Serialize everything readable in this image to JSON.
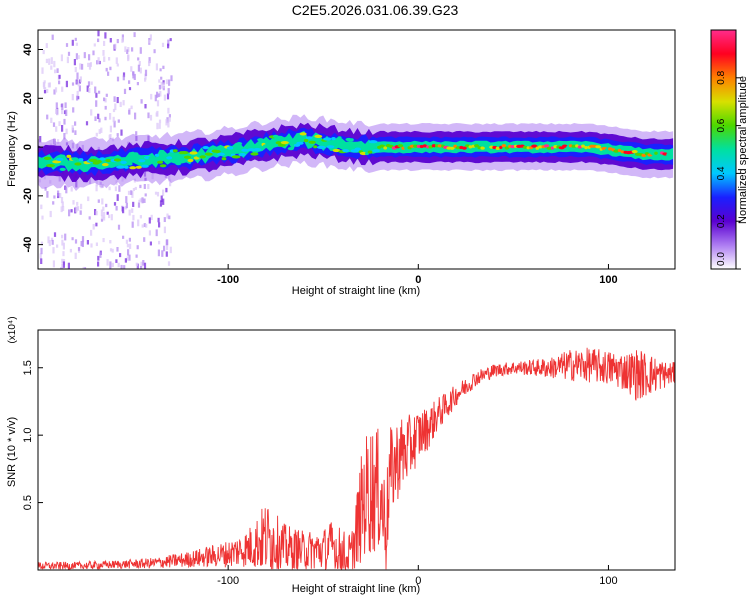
{
  "title": "C2E5.2026.031.06.39.G23",
  "chart_data": [
    {
      "type": "heatmap",
      "title": "",
      "xlabel": "Height of straight line (km)",
      "ylabel": "Frequency (Hz)",
      "xlim": [
        -200,
        135
      ],
      "ylim": [
        -50,
        48
      ],
      "xticks": [
        -100,
        0,
        100
      ],
      "xtick_labels": [
        "-100",
        "0",
        "100"
      ],
      "yticks": [
        -40,
        -20,
        0,
        20,
        40
      ],
      "ytick_labels": [
        "-40",
        "-20",
        "0",
        "20",
        "40"
      ],
      "colorbar": {
        "label": "Normalized spectral amplitude",
        "range": [
          0,
          1
        ],
        "ticks": [
          0.0,
          0.2,
          0.4,
          0.6,
          0.8
        ],
        "tick_labels": [
          "0.0",
          "0.2",
          "0.4",
          "0.6",
          "0.8"
        ],
        "stops": [
          "#ffffff",
          "#ad7cf2",
          "#5a00d0",
          "#1a20ff",
          "#00c8ff",
          "#00e0a0",
          "#4cd800",
          "#d8e000",
          "#ff8000",
          "#ff0020",
          "#ff2c8c"
        ]
      },
      "band_center": {
        "x": [
          -200,
          -180,
          -160,
          -140,
          -120,
          -100,
          -80,
          -60,
          -50,
          -40,
          -30,
          -22,
          -10,
          0,
          20,
          40,
          60,
          80,
          90,
          100,
          110,
          120,
          135
        ],
        "y": [
          -6,
          -7,
          -6,
          -5,
          -4,
          -2,
          1,
          3,
          2,
          1,
          0,
          0,
          0,
          0,
          0,
          0,
          0,
          0,
          0,
          -1,
          -2,
          -3,
          -3
        ]
      },
      "band_halfwidth_hz": 5,
      "noise_region_x": [
        -200,
        -130
      ]
    },
    {
      "type": "line",
      "title": "",
      "xlabel": "Height of straight line (km)",
      "ylabel": "SNR (10 * v/v)",
      "y_scale_label": "(x10⁴)",
      "xlim": [
        -200,
        135
      ],
      "ylim": [
        0,
        1.78
      ],
      "xticks": [
        -100,
        0,
        100
      ],
      "xtick_labels": [
        "-100",
        "0",
        "100"
      ],
      "yticks": [
        0.5,
        1.0,
        1.5
      ],
      "ytick_labels": [
        "0.5",
        "1.0",
        "1.5"
      ],
      "line_color": "#ee3333",
      "series": [
        {
          "name": "SNR",
          "x": [
            -200,
            -180,
            -160,
            -140,
            -120,
            -100,
            -90,
            -85,
            -80,
            -75,
            -70,
            -60,
            -50,
            -45,
            -40,
            -35,
            -30,
            -28,
            -25,
            -20,
            -17,
            -15,
            -10,
            -5,
            0,
            5,
            10,
            15,
            20,
            30,
            40,
            50,
            60,
            70,
            80,
            90,
            100,
            110,
            115,
            120,
            130,
            135
          ],
          "y": [
            0.03,
            0.03,
            0.04,
            0.05,
            0.08,
            0.12,
            0.16,
            0.2,
            0.24,
            0.2,
            0.16,
            0.14,
            0.15,
            0.18,
            0.12,
            0.1,
            0.45,
            0.55,
            0.6,
            0.58,
            0.3,
            0.7,
            0.85,
            0.9,
            1.0,
            1.05,
            1.15,
            1.22,
            1.3,
            1.42,
            1.48,
            1.5,
            1.5,
            1.5,
            1.52,
            1.52,
            1.5,
            1.47,
            1.45,
            1.45,
            1.45,
            1.46
          ],
          "noise_amplitude": [
            0.03,
            0.03,
            0.03,
            0.04,
            0.06,
            0.1,
            0.14,
            0.2,
            0.28,
            0.22,
            0.18,
            0.15,
            0.16,
            0.2,
            0.18,
            0.2,
            0.4,
            0.45,
            0.5,
            0.45,
            0.35,
            0.35,
            0.3,
            0.25,
            0.2,
            0.16,
            0.13,
            0.1,
            0.08,
            0.06,
            0.05,
            0.05,
            0.06,
            0.08,
            0.12,
            0.13,
            0.13,
            0.15,
            0.2,
            0.17,
            0.1,
            0.08
          ]
        }
      ]
    }
  ]
}
